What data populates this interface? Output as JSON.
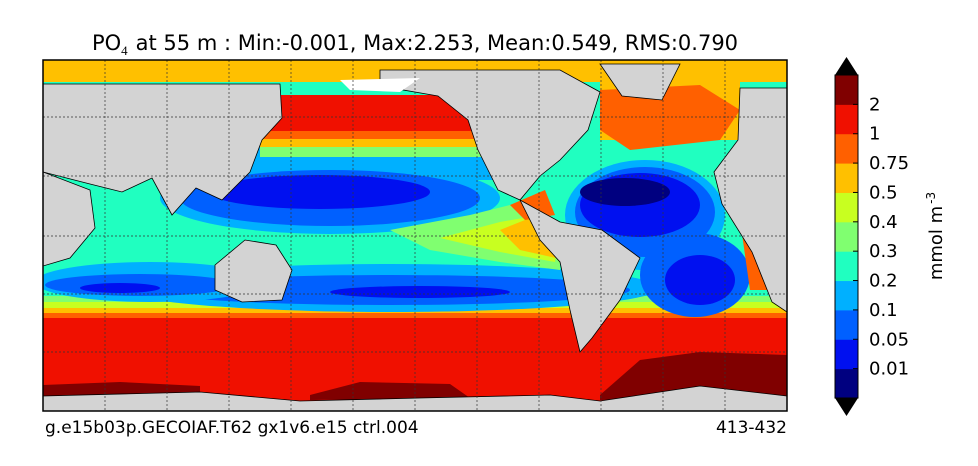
{
  "title": {
    "species": "PO",
    "subscript": "4",
    "rest": "at 55 m : Min:-0.001, Max:2.253, Mean:0.549, RMS:0.790"
  },
  "colorbar": {
    "levels": [
      0.01,
      0.05,
      0.1,
      0.2,
      0.3,
      0.4,
      0.5,
      0.75,
      1,
      2
    ],
    "colors": [
      "#000080",
      "#0010f0",
      "#0060ff",
      "#00b0ff",
      "#20ffc0",
      "#80ff70",
      "#c8ff20",
      "#ffc000",
      "#ff6000",
      "#f01000",
      "#800000"
    ],
    "label": "mmol m",
    "label_sup": "-3"
  },
  "footer": {
    "left": "g.e15b03p.GECOIAF.T62 gx1v6.e15 ctrl.004",
    "right": "413-432"
  }
}
